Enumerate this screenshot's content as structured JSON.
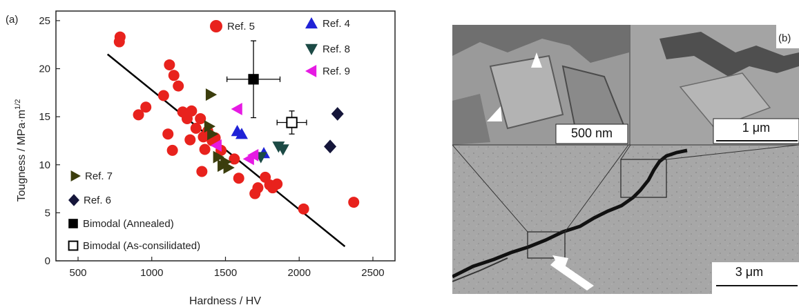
{
  "chart_data": {
    "type": "scatter",
    "panel_label": "(a)",
    "xlabel": "Hardness / HV",
    "ylabel_main": "Tougness / MPa·m",
    "ylabel_sup": "1/2",
    "xlim": [
      350,
      2650
    ],
    "ylim": [
      0,
      26
    ],
    "xticks": [
      "500",
      "1000",
      "1500",
      "2000",
      "2500"
    ],
    "xtick_values": [
      500,
      1000,
      1500,
      2000,
      2500
    ],
    "yticks": [
      "0",
      "5",
      "10",
      "15",
      "20",
      "25"
    ],
    "ytick_values": [
      0,
      5,
      10,
      15,
      20,
      25
    ],
    "fit_line": {
      "x": [
        700,
        2310
      ],
      "y": [
        21.5,
        1.5
      ]
    },
    "series": [
      {
        "name": "Ref. 5",
        "marker": "circle",
        "color": "#e8221d",
        "points": [
          [
            785,
            23.3
          ],
          [
            780,
            22.8
          ],
          [
            910,
            15.2
          ],
          [
            960,
            16.0
          ],
          [
            1080,
            17.2
          ],
          [
            1110,
            13.2
          ],
          [
            1120,
            20.4
          ],
          [
            1140,
            11.5
          ],
          [
            1150,
            19.3
          ],
          [
            1180,
            18.2
          ],
          [
            1210,
            15.5
          ],
          [
            1240,
            14.8
          ],
          [
            1260,
            12.6
          ],
          [
            1270,
            15.6
          ],
          [
            1300,
            13.8
          ],
          [
            1330,
            14.8
          ],
          [
            1340,
            9.3
          ],
          [
            1350,
            12.9
          ],
          [
            1360,
            11.6
          ],
          [
            1380,
            13.5
          ],
          [
            1410,
            12.5
          ],
          [
            1430,
            12.8
          ],
          [
            1470,
            11.5
          ],
          [
            1560,
            10.6
          ],
          [
            1590,
            8.6
          ],
          [
            1700,
            7.0
          ],
          [
            1720,
            7.6
          ],
          [
            1770,
            8.7
          ],
          [
            1800,
            7.9
          ],
          [
            1820,
            7.6
          ],
          [
            1850,
            8.0
          ],
          [
            2030,
            5.4
          ],
          [
            2370,
            6.1
          ]
        ]
      },
      {
        "name": "Ref. 4",
        "marker": "triangle-up",
        "color": "#1f22d6",
        "points": [
          [
            1580,
            13.5
          ],
          [
            1610,
            13.2
          ],
          [
            1760,
            11.2
          ]
        ]
      },
      {
        "name": "Ref. 8",
        "marker": "triangle-down",
        "color": "#1c4a45",
        "points": [
          [
            1740,
            10.8
          ],
          [
            1860,
            11.9
          ],
          [
            1890,
            11.6
          ]
        ]
      },
      {
        "name": "Ref. 9",
        "marker": "triangle-left",
        "color": "#e61ae3",
        "points": [
          [
            1440,
            12.0
          ],
          [
            1580,
            15.8
          ],
          [
            1660,
            10.6
          ],
          [
            1690,
            11.0
          ]
        ]
      },
      {
        "name": "Ref. 7",
        "marker": "triangle-right",
        "color": "#3b3d0d",
        "points": [
          [
            1400,
            17.3
          ],
          [
            1390,
            14.0
          ],
          [
            1410,
            13.2
          ],
          [
            1450,
            10.8
          ],
          [
            1480,
            9.9
          ],
          [
            1500,
            10.3
          ],
          [
            1520,
            9.7
          ]
        ]
      },
      {
        "name": "Ref. 6",
        "marker": "diamond",
        "color": "#15163a",
        "points": [
          [
            2260,
            15.3
          ],
          [
            2210,
            11.9
          ]
        ]
      },
      {
        "name": "Bimodal (Annealed)",
        "marker": "square",
        "color": "#000000",
        "points": [
          [
            1690,
            18.9
          ]
        ],
        "xerr": [
          180
        ],
        "yerr": [
          4.0
        ]
      },
      {
        "name": "Bimodal (As-consilidated)",
        "marker": "square-open",
        "color": "#000000",
        "points": [
          [
            1950,
            14.4
          ]
        ],
        "xerr": [
          100
        ],
        "yerr": [
          1.2
        ]
      }
    ],
    "legend_top": [
      "Ref. 5",
      "Ref. 4",
      "Ref. 8",
      "Ref. 9"
    ],
    "legend_bottom": [
      "Ref. 7",
      "Ref. 6",
      "Bimodal (Annealed)",
      "Bimodal (As-consilidated)"
    ],
    "grid": false
  },
  "micrograph": {
    "panel_label": "(b)",
    "scale_bars": [
      "500 nm",
      "1 μm",
      "3 μm"
    ],
    "colors": {
      "background": "#a9a9a9",
      "crack": "#141414"
    }
  }
}
